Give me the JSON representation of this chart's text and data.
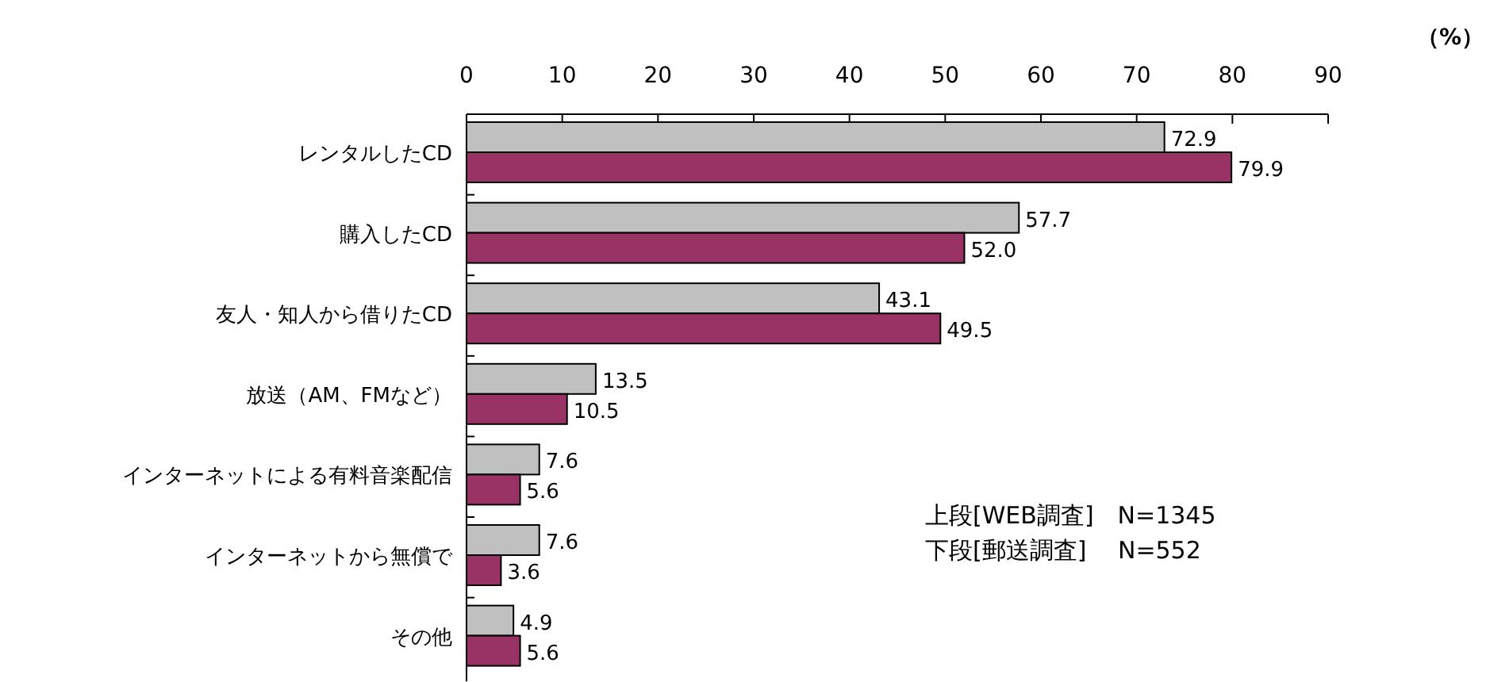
{
  "chart_data": {
    "type": "bar",
    "orientation": "horizontal",
    "xlabel": "（%）",
    "categories": [
      "レンタルしたCD",
      "購入したCD",
      "友人・知人から借りたCD",
      "放送（AM、FMなど）",
      "インターネットによる有料音楽配信",
      "インターネットから無償で",
      "その他"
    ],
    "series": [
      {
        "color": "#c0c0c0",
        "values": [
          72.9,
          57.7,
          43.1,
          13.5,
          7.6,
          7.6,
          4.9
        ],
        "value_labels": [
          "72.9",
          "57.7",
          "43.1",
          "13.5",
          "7.6",
          "7.6",
          "4.9"
        ]
      },
      {
        "color": "#993366",
        "values": [
          79.9,
          52.0,
          49.5,
          10.5,
          5.6,
          3.6,
          5.6
        ],
        "value_labels": [
          "79.9",
          "52.0",
          "49.5",
          "10.5",
          "5.6",
          "3.6",
          "5.6"
        ]
      }
    ],
    "xlim": [
      0,
      90
    ],
    "xticks": [
      0,
      10,
      20,
      30,
      40,
      50,
      60,
      70,
      80,
      90
    ],
    "annotations": [
      "上段[WEB調査]　N=1345",
      "下段[郵送調査]　 N=552"
    ]
  }
}
